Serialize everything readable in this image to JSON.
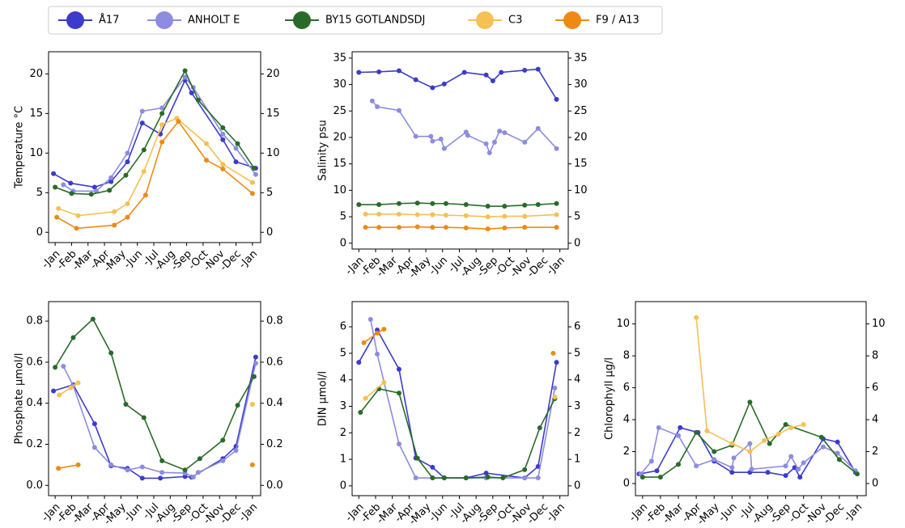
{
  "legend": [
    {
      "name": "Å17",
      "color": "#3b3bcc"
    },
    {
      "name": "ANHOLT E",
      "color": "#8c8ce0"
    },
    {
      "name": "BY15 GOTLANDSDJ",
      "color": "#286b28"
    },
    {
      "name": "C3",
      "color": "#f5c055"
    },
    {
      "name": "F9 / A13",
      "color": "#ee8a12"
    }
  ],
  "chart_data": [
    {
      "type": "line",
      "ylabel": "Temperature °C",
      "xlim": [
        -0.4,
        12.5
      ],
      "ylim": [
        -1.3,
        22.8
      ],
      "yticks": [
        0,
        5,
        10,
        15,
        20
      ],
      "xticks": [
        {
          "value": 0,
          "label": "-Jan"
        },
        {
          "value": 1,
          "label": "-Feb"
        },
        {
          "value": 2,
          "label": "-Mar"
        },
        {
          "value": 3,
          "label": "-Apr"
        },
        {
          "value": 4,
          "label": "-May"
        },
        {
          "value": 5,
          "label": "-Jun"
        },
        {
          "value": 6,
          "label": "-Jul"
        },
        {
          "value": 7,
          "label": "-Aug"
        },
        {
          "value": 8,
          "label": "-Sep"
        },
        {
          "value": 9,
          "label": "-Oct"
        },
        {
          "value": 10,
          "label": "-Nov"
        },
        {
          "value": 11,
          "label": "-Dec"
        },
        {
          "value": 12,
          "label": "-Jan"
        }
      ],
      "series": [
        {
          "x": [
            -0.1,
            0.94,
            2.4,
            3.4,
            4.4,
            5.3,
            6.4,
            7.9,
            8.3,
            10.2,
            11.0,
            12.2
          ],
          "values": [
            7.4,
            6.2,
            5.7,
            6.4,
            8.9,
            13.8,
            12.4,
            19.2,
            17.6,
            11.7,
            8.9,
            8.1
          ]
        },
        {
          "x": [
            0.5,
            1.1,
            2.5,
            3.4,
            4.4,
            5.3,
            6.5,
            7.9,
            8.4,
            10.2,
            11.0,
            12.2
          ],
          "values": [
            6.0,
            5.2,
            5.2,
            6.9,
            10.0,
            15.3,
            15.7,
            19.6,
            18.3,
            12.4,
            10.6,
            7.3
          ]
        },
        {
          "x": [
            0,
            1.0,
            2.2,
            3.3,
            4.3,
            5.4,
            6.5,
            7.9,
            8.7,
            10.2,
            11.1,
            12.1
          ],
          "values": [
            5.7,
            4.9,
            4.8,
            5.3,
            7.2,
            10.4,
            15.0,
            20.4,
            16.7,
            13.2,
            11.2,
            8.1
          ]
        },
        {
          "x": [
            0.2,
            1.4,
            3.6,
            4.4,
            5.4,
            6.5,
            7.4,
            9.2,
            10.2,
            12.0
          ],
          "values": [
            3.0,
            2.1,
            2.6,
            3.6,
            7.7,
            13.6,
            14.4,
            11.2,
            8.6,
            6.3
          ]
        },
        {
          "x": [
            0.1,
            1.3,
            3.6,
            4.4,
            5.5,
            6.5,
            7.5,
            9.2,
            10.2,
            12.0
          ],
          "values": [
            1.9,
            0.5,
            0.9,
            1.9,
            4.7,
            11.4,
            14.0,
            9.1,
            8.0,
            4.9
          ]
        }
      ]
    },
    {
      "type": "line",
      "ylabel": "Salinity psu",
      "xlim": [
        -0.4,
        12.5
      ],
      "ylim": [
        -1.1,
        36.2
      ],
      "yticks": [
        0,
        5,
        10,
        15,
        20,
        25,
        30,
        35
      ],
      "xticks": [
        {
          "value": 0,
          "label": "-Jan"
        },
        {
          "value": 1,
          "label": "-Feb"
        },
        {
          "value": 2,
          "label": "-Mar"
        },
        {
          "value": 3,
          "label": "-Apr"
        },
        {
          "value": 4,
          "label": "-May"
        },
        {
          "value": 5,
          "label": "-Jun"
        },
        {
          "value": 6,
          "label": "-Jul"
        },
        {
          "value": 7,
          "label": "-Aug"
        },
        {
          "value": 8,
          "label": "-Sep"
        },
        {
          "value": 9,
          "label": "-Oct"
        },
        {
          "value": 10,
          "label": "-Nov"
        },
        {
          "value": 11,
          "label": "-Dec"
        },
        {
          "value": 12,
          "label": "-Jan"
        }
      ],
      "series": [
        {
          "x": [
            0,
            1.2,
            2.4,
            3.4,
            4.4,
            5.1,
            6.3,
            7.6,
            8.0,
            8.5,
            9.9,
            10.7,
            11.8
          ],
          "values": [
            32.3,
            32.4,
            32.6,
            30.9,
            29.4,
            30.1,
            32.3,
            31.8,
            30.7,
            32.3,
            32.7,
            32.9,
            27.2
          ]
        },
        {
          "x": [
            0.8,
            1.1,
            2.4,
            3.4,
            4.3,
            4.4,
            4.9,
            5.1,
            6.4,
            6.5,
            7.6,
            7.8,
            8.1,
            8.4,
            8.7,
            9.9,
            10.7,
            11.8
          ],
          "values": [
            26.9,
            25.8,
            25.1,
            20.2,
            20.2,
            19.3,
            19.7,
            17.9,
            21.0,
            20.4,
            18.8,
            17.1,
            19.1,
            21.2,
            20.9,
            19.1,
            21.7,
            17.9
          ]
        },
        {
          "x": [
            0,
            1.2,
            2.4,
            3.5,
            4.4,
            5.2,
            6.4,
            7.7,
            8.7,
            9.9,
            10.7,
            11.8
          ],
          "values": [
            7.3,
            7.3,
            7.5,
            7.6,
            7.5,
            7.5,
            7.3,
            7.0,
            7.0,
            7.2,
            7.3,
            7.5
          ]
        },
        {
          "x": [
            0.4,
            1.2,
            2.4,
            3.5,
            4.4,
            5.2,
            6.4,
            7.7,
            8.7,
            9.9,
            11.8
          ],
          "values": [
            5.5,
            5.5,
            5.5,
            5.4,
            5.4,
            5.3,
            5.2,
            5.0,
            5.1,
            5.1,
            5.4
          ]
        },
        {
          "x": [
            0.4,
            1.2,
            2.4,
            3.5,
            4.4,
            5.2,
            6.4,
            7.7,
            8.7,
            9.9,
            11.8
          ],
          "values": [
            3.0,
            3.0,
            3.0,
            3.1,
            3.0,
            3.0,
            2.9,
            2.7,
            2.9,
            3.0,
            3.0
          ]
        }
      ]
    },
    {
      "type": "line",
      "ylabel": "Phosphate µmol/l",
      "xlim": [
        -0.4,
        12.5
      ],
      "ylim": [
        -0.05,
        0.895
      ],
      "yticks": [
        {
          "value": 0,
          "label": "0.0"
        },
        0.2,
        0.4,
        0.6,
        0.8
      ],
      "xticks": [
        {
          "value": 0,
          "label": "-Jan"
        },
        {
          "value": 1,
          "label": "-Feb"
        },
        {
          "value": 2,
          "label": "-Mar"
        },
        {
          "value": 3,
          "label": "-Apr"
        },
        {
          "value": 4,
          "label": "-May"
        },
        {
          "value": 5,
          "label": "-Jun"
        },
        {
          "value": 6,
          "label": "-Jul"
        },
        {
          "value": 7,
          "label": "-Aug"
        },
        {
          "value": 8,
          "label": "-Sep"
        },
        {
          "value": 9,
          "label": "-Oct"
        },
        {
          "value": 10,
          "label": "-Nov"
        },
        {
          "value": 11,
          "label": "-Dec"
        },
        {
          "value": 12,
          "label": "-Jan"
        }
      ],
      "series": [
        {
          "x": [
            -0.1,
            1.1,
            2.4,
            3.4,
            4.4,
            5.3,
            6.4,
            7.9,
            8.3,
            10.2,
            11.0,
            12.2
          ],
          "values": [
            0.46,
            0.49,
            0.3,
            0.095,
            0.083,
            0.035,
            0.035,
            0.043,
            0.04,
            0.13,
            0.19,
            0.625
          ]
        },
        {
          "x": [
            0.5,
            1.1,
            2.4,
            3.4,
            4.4,
            5.3,
            6.5,
            7.9,
            8.4,
            8.7,
            10.2,
            11.0,
            12.2
          ],
          "values": [
            0.58,
            0.485,
            0.185,
            0.1,
            0.075,
            0.09,
            0.063,
            0.06,
            0.04,
            0.063,
            0.12,
            0.17,
            0.595
          ]
        },
        {
          "x": [
            0,
            1.1,
            2.3,
            3.4,
            4.3,
            5.4,
            6.5,
            7.9,
            8.8,
            10.2,
            11.1,
            12.1
          ],
          "values": [
            0.575,
            0.72,
            0.81,
            0.645,
            0.395,
            0.33,
            0.12,
            0.075,
            0.13,
            0.22,
            0.39,
            0.53
          ]
        },
        {
          "x": [
            0.25,
            0.94,
            1.4,
            null,
            12.0
          ],
          "values": [
            0.44,
            0.475,
            0.5,
            null,
            0.395
          ]
        },
        {
          "x": [
            0.2,
            1.4,
            null,
            12.0
          ],
          "values": [
            0.083,
            0.1,
            null,
            0.1
          ]
        }
      ]
    },
    {
      "type": "line",
      "ylabel": "DIN µmol/l",
      "xlim": [
        -0.4,
        12.5
      ],
      "ylim": [
        -0.37,
        6.95
      ],
      "yticks": [
        0,
        1,
        2,
        3,
        4,
        5,
        6
      ],
      "xticks": [
        {
          "value": 0,
          "label": "-Jan"
        },
        {
          "value": 1,
          "label": "-Feb"
        },
        {
          "value": 2,
          "label": "-Mar"
        },
        {
          "value": 3,
          "label": "-Apr"
        },
        {
          "value": 4,
          "label": "-May"
        },
        {
          "value": 5,
          "label": "-Jun"
        },
        {
          "value": 6,
          "label": "-Jul"
        },
        {
          "value": 7,
          "label": "-Aug"
        },
        {
          "value": 8,
          "label": "-Sep"
        },
        {
          "value": 9,
          "label": "-Oct"
        },
        {
          "value": 10,
          "label": "-Nov"
        },
        {
          "value": 11,
          "label": "-Dec"
        },
        {
          "value": 12,
          "label": "-Jan"
        }
      ],
      "series": [
        {
          "x": [
            0,
            1.1,
            2.4,
            3.4,
            4.4,
            5.1,
            6.4,
            7.6,
            9.9,
            10.7,
            11.8
          ],
          "values": [
            4.66,
            5.88,
            4.4,
            1.05,
            0.7,
            0.3,
            0.3,
            0.48,
            0.3,
            0.73,
            4.66
          ]
        },
        {
          "x": [
            0.7,
            1.1,
            2.4,
            3.4,
            4.4,
            5.1,
            6.4,
            7.6,
            9.9,
            10.7,
            11.7
          ],
          "values": [
            6.28,
            4.97,
            1.58,
            0.3,
            0.3,
            0.3,
            0.3,
            0.3,
            0.3,
            0.3,
            3.69
          ]
        },
        {
          "x": [
            0.1,
            1.2,
            2.4,
            3.5,
            4.4,
            5.1,
            6.4,
            7.7,
            8.6,
            9.9,
            10.8,
            11.7
          ],
          "values": [
            2.77,
            3.66,
            3.5,
            1.04,
            0.3,
            0.3,
            0.3,
            0.33,
            0.3,
            0.61,
            2.19,
            3.29
          ]
        },
        {
          "x": [
            0.4,
            1.5,
            null,
            11.7
          ],
          "values": [
            3.3,
            3.9,
            null,
            3.35
          ]
        },
        {
          "x": [
            0.3,
            1.1,
            1.5,
            null,
            11.6
          ],
          "values": [
            5.4,
            5.76,
            5.91,
            null,
            5.0
          ]
        }
      ]
    },
    {
      "type": "line",
      "ylabel": "Chlorophyll µg/l",
      "xlim": [
        -0.4,
        12.5
      ],
      "ylim": [
        -0.76,
        11.4
      ],
      "yticks": [
        0,
        2,
        4,
        6,
        8,
        10
      ],
      "xticks": [
        {
          "value": 0,
          "label": "-Jan"
        },
        {
          "value": 1,
          "label": "-Feb"
        },
        {
          "value": 2,
          "label": "-Mar"
        },
        {
          "value": 3,
          "label": "-Apr"
        },
        {
          "value": 4,
          "label": "-May"
        },
        {
          "value": 5,
          "label": "-Jun"
        },
        {
          "value": 6,
          "label": "-Jul"
        },
        {
          "value": 7,
          "label": "-Aug"
        },
        {
          "value": 8,
          "label": "-Sep"
        },
        {
          "value": 9,
          "label": "-Oct"
        },
        {
          "value": 10,
          "label": "-Nov"
        },
        {
          "value": 11,
          "label": "-Dec"
        },
        {
          "value": 12,
          "label": "-Jan"
        }
      ],
      "series": [
        {
          "x": [
            -0.2,
            0.8,
            2.1,
            3.1,
            4.0,
            5.0,
            6.0,
            7.0,
            8.0,
            8.5,
            8.8,
            10.1,
            10.9,
            11.9
          ],
          "values": [
            0.6,
            0.8,
            3.5,
            3.2,
            1.4,
            0.7,
            0.7,
            0.7,
            0.5,
            1.0,
            0.4,
            2.8,
            2.6,
            0.7
          ]
        },
        {
          "x": [
            -0.1,
            0.5,
            0.9,
            2.0,
            3.0,
            4.0,
            5.0,
            5.1,
            6.0,
            6.1,
            8.0,
            8.3,
            8.7,
            9.0,
            10.1,
            10.9,
            11.9
          ],
          "values": [
            0.6,
            1.4,
            3.5,
            3.0,
            1.1,
            1.5,
            1.0,
            1.6,
            2.5,
            0.9,
            1.1,
            1.7,
            0.9,
            1.3,
            2.3,
            1.9,
            0.8
          ]
        },
        {
          "x": [
            0,
            1.0,
            2.0,
            3.0,
            4.0,
            5.0,
            6.0,
            7.1,
            8.0,
            10.0,
            11.0,
            12.0
          ],
          "values": [
            0.4,
            0.4,
            1.2,
            3.2,
            2.0,
            2.4,
            5.1,
            2.5,
            3.7,
            2.9,
            1.5,
            0.6
          ]
        },
        {
          "x": [
            3.0,
            3.6,
            5.0,
            6.0,
            6.8,
            7.6,
            8.3,
            9.0
          ],
          "values": [
            10.4,
            3.3,
            2.5,
            2.0,
            2.7,
            3.1,
            3.5,
            3.7
          ]
        },
        {
          "x": [],
          "values": []
        }
      ]
    }
  ]
}
